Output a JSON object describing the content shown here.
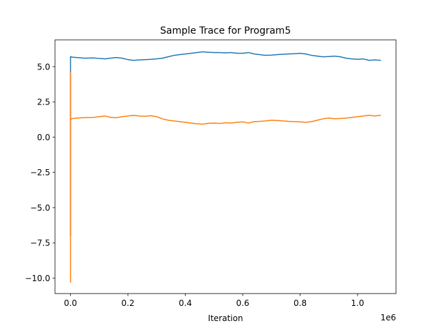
{
  "chart_data": {
    "type": "line",
    "title": "Sample Trace for Program5",
    "xlabel": "Iteration",
    "ylabel": "",
    "x_offset_label": "1e6",
    "xlim": [
      -0.054,
      1.134
    ],
    "ylim": [
      -11.1,
      6.9
    ],
    "x_ticks": [
      0.0,
      0.2,
      0.4,
      0.6,
      0.8,
      1.0
    ],
    "x_tick_labels": [
      "0.0",
      "0.2",
      "0.4",
      "0.6",
      "0.8",
      "1.0"
    ],
    "y_ticks": [
      -10.0,
      -7.5,
      -5.0,
      -2.5,
      0.0,
      2.5,
      5.0
    ],
    "y_tick_labels": [
      "−10.0",
      "−7.5",
      "−5.0",
      "−2.5",
      "0.0",
      "2.5",
      "5.0"
    ],
    "grid": false,
    "series": [
      {
        "color": "#1f77b4",
        "x": [
          0.0,
          0.0,
          0.0,
          0.001,
          0.003,
          0.02,
          0.05,
          0.08,
          0.1,
          0.12,
          0.14,
          0.16,
          0.18,
          0.2,
          0.22,
          0.24,
          0.26,
          0.28,
          0.3,
          0.32,
          0.34,
          0.36,
          0.38,
          0.4,
          0.42,
          0.44,
          0.46,
          0.48,
          0.5,
          0.52,
          0.54,
          0.56,
          0.58,
          0.6,
          0.62,
          0.64,
          0.66,
          0.68,
          0.7,
          0.72,
          0.74,
          0.76,
          0.78,
          0.8,
          0.82,
          0.84,
          0.86,
          0.88,
          0.9,
          0.92,
          0.94,
          0.96,
          0.98,
          1.0,
          1.02,
          1.04,
          1.06,
          1.08
        ],
        "y": [
          -7.0,
          4.5,
          5.7,
          5.72,
          5.68,
          5.65,
          5.6,
          5.62,
          5.58,
          5.55,
          5.6,
          5.65,
          5.6,
          5.5,
          5.45,
          5.48,
          5.5,
          5.52,
          5.55,
          5.6,
          5.7,
          5.8,
          5.85,
          5.9,
          5.95,
          6.0,
          6.05,
          6.02,
          6.0,
          6.0,
          5.98,
          6.0,
          5.95,
          5.95,
          6.0,
          5.9,
          5.85,
          5.8,
          5.82,
          5.85,
          5.88,
          5.9,
          5.92,
          5.95,
          5.9,
          5.8,
          5.75,
          5.7,
          5.72,
          5.75,
          5.7,
          5.6,
          5.55,
          5.52,
          5.55,
          5.45,
          5.48,
          5.45
        ]
      },
      {
        "color": "#ff7f0e",
        "x": [
          0.0,
          0.0,
          0.0,
          0.0,
          0.001,
          0.002,
          0.003,
          0.02,
          0.05,
          0.08,
          0.1,
          0.12,
          0.14,
          0.16,
          0.18,
          0.2,
          0.22,
          0.24,
          0.26,
          0.28,
          0.3,
          0.32,
          0.34,
          0.36,
          0.38,
          0.4,
          0.42,
          0.44,
          0.46,
          0.48,
          0.5,
          0.52,
          0.54,
          0.56,
          0.58,
          0.6,
          0.62,
          0.64,
          0.66,
          0.68,
          0.7,
          0.72,
          0.74,
          0.76,
          0.78,
          0.8,
          0.82,
          0.84,
          0.86,
          0.88,
          0.9,
          0.92,
          0.94,
          0.96,
          0.98,
          1.0,
          1.02,
          1.04,
          1.06,
          1.08
        ],
        "y": [
          -10.3,
          4.6,
          -5.0,
          1.2,
          1.3,
          1.28,
          1.3,
          1.35,
          1.38,
          1.4,
          1.45,
          1.5,
          1.4,
          1.38,
          1.45,
          1.5,
          1.55,
          1.5,
          1.48,
          1.52,
          1.45,
          1.3,
          1.2,
          1.15,
          1.1,
          1.05,
          1.0,
          0.95,
          0.92,
          0.98,
          1.0,
          0.97,
          1.02,
          1.0,
          1.05,
          1.08,
          1.0,
          1.1,
          1.12,
          1.15,
          1.2,
          1.18,
          1.15,
          1.12,
          1.1,
          1.08,
          1.05,
          1.1,
          1.2,
          1.3,
          1.35,
          1.3,
          1.32,
          1.35,
          1.4,
          1.45,
          1.5,
          1.55,
          1.5,
          1.55
        ]
      }
    ]
  }
}
